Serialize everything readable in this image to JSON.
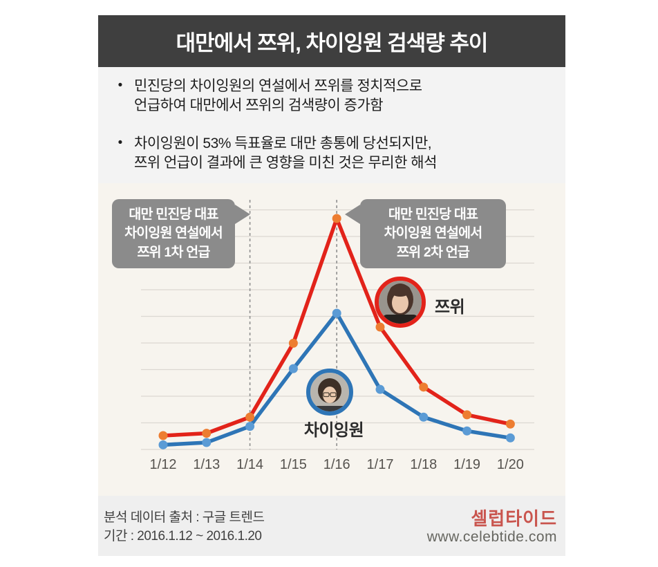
{
  "header": {
    "title": "대만에서 쯔위, 차이잉원 검색량 추이",
    "bg_color": "#3f3f3f",
    "text_color": "#ffffff"
  },
  "summary": {
    "bullets": [
      "민진당의 차이잉원의 연설에서 쯔위를 정치적으로\n언급하여 대만에서 쯔위의 검색량이 증가함",
      "차이잉원이 53% 득표율로 대만 총통에 당선되지만,\n쯔위 언급이 결과에 큰 영향을 미친 것은 무리한 해석"
    ]
  },
  "chart_data": {
    "type": "line",
    "title": "대만에서 쯔위, 차이잉원 검색량 추이",
    "categories": [
      "1/12",
      "1/13",
      "1/14",
      "1/15",
      "1/16",
      "1/17",
      "1/18",
      "1/19",
      "1/20"
    ],
    "series": [
      {
        "name": "쯔위",
        "line_color": "#e2231a",
        "marker_color": "#ed7d31",
        "values": [
          6,
          7,
          14,
          46,
          100,
          53,
          27,
          15,
          11
        ]
      },
      {
        "name": "차이잉원",
        "line_color": "#2e75b6",
        "marker_color": "#5b9bd5",
        "values": [
          2,
          3,
          10,
          35,
          59,
          26,
          14,
          8,
          5
        ]
      }
    ],
    "ylim": [
      0,
      104
    ],
    "grid": "horizontal",
    "legend_position": "inline-photo-labels",
    "event_markers": [
      {
        "category": "1/14",
        "index": 2
      },
      {
        "category": "1/16",
        "index": 4
      }
    ],
    "annotations": [
      {
        "text": "대만 민진당 대표\n차이잉원 연설에서\n쯔위 1차 언급",
        "points_to": "1/14"
      },
      {
        "text": "대만 민진당 대표\n차이잉원 연설에서\n쯔위 2차 언급",
        "points_to": "1/16"
      }
    ]
  },
  "footer": {
    "source_line": "분석 데이터 출처 : 구글 트렌드",
    "period_line": "기간 : 2016.1.12 ~ 2016.1.20",
    "logo_text": "셀럽타이드",
    "website": "www.celebtide.com"
  },
  "colors": {
    "summary_bg": "#f3f3f3",
    "chart_bg": "#f7f4ee",
    "footer_bg": "#efefef",
    "callout_bg": "#8b8b8b",
    "gridline": "#dbd8d2",
    "event_dash": "#8f8f8f",
    "logo_color": "#c9554e"
  }
}
